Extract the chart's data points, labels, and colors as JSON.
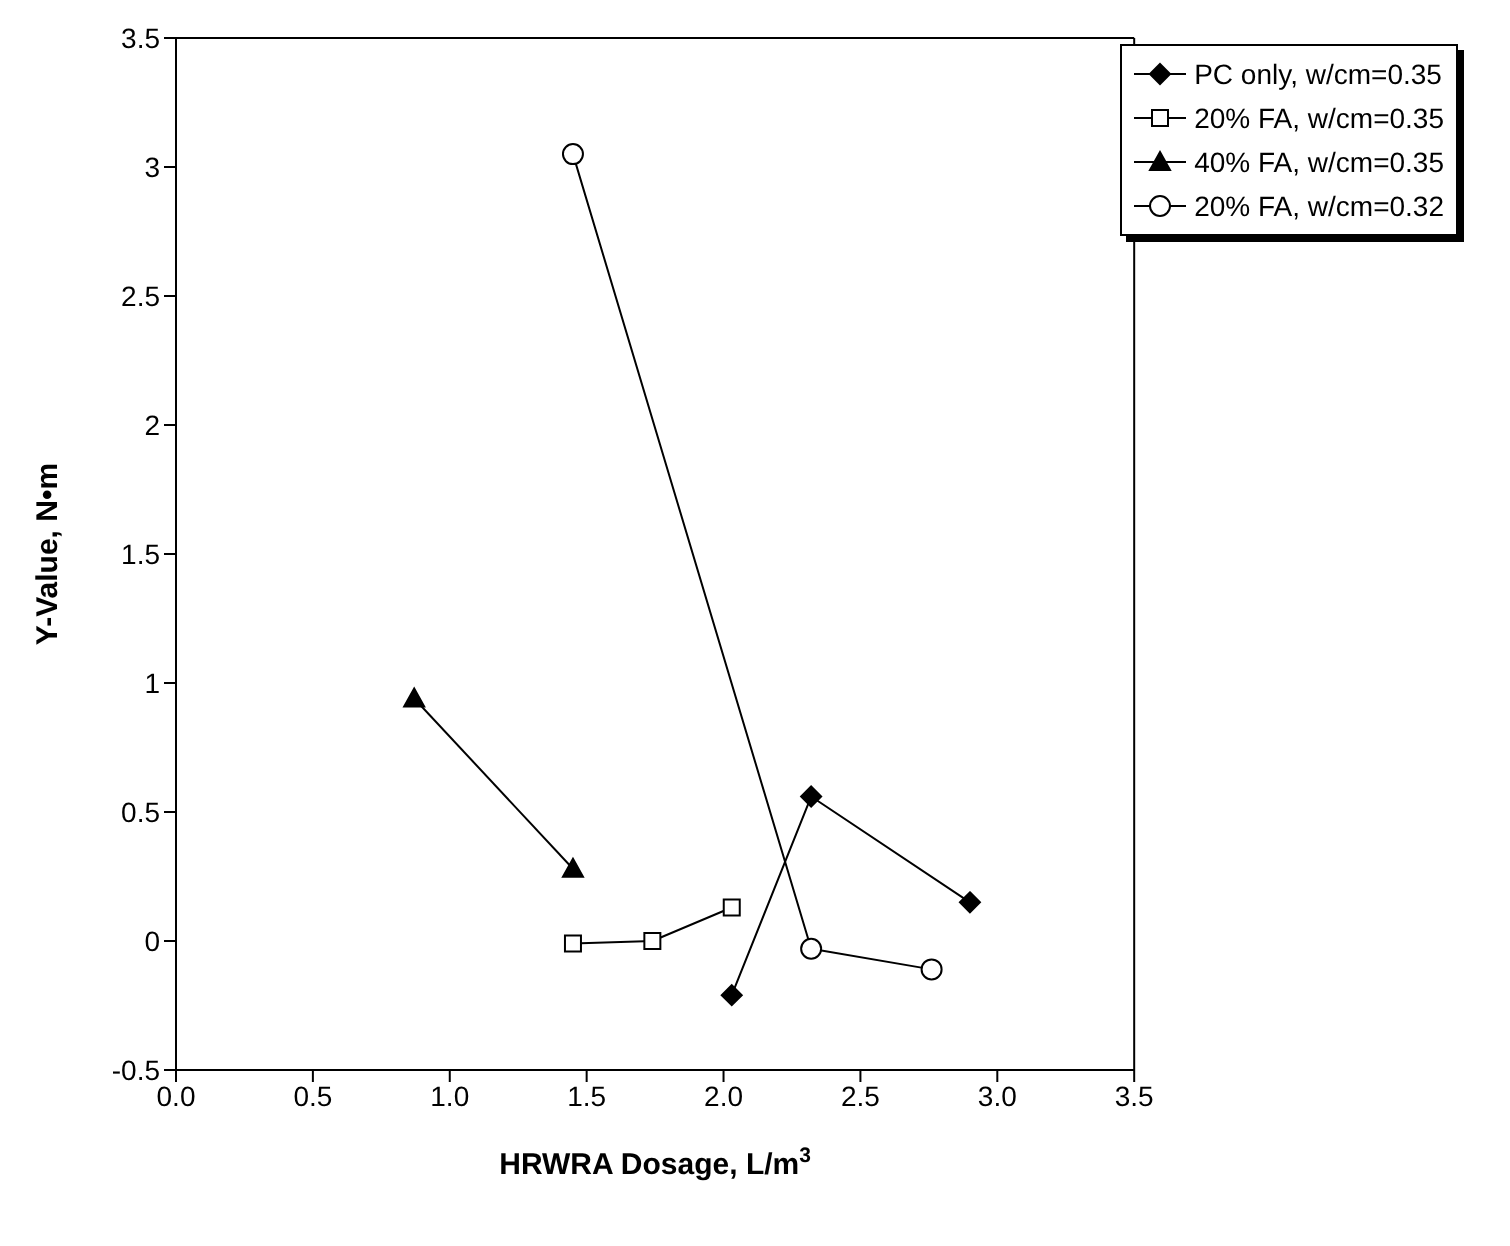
{
  "chart_data": {
    "type": "line",
    "xlabel": "HRWRA Dosage, L/m$^{3}$",
    "ylabel": "Y-Value, N•m",
    "xlim": [
      0,
      3.5
    ],
    "xticks": [
      {
        "value": 0,
        "label": "0.0"
      },
      {
        "value": 0.5,
        "label": "0.5"
      },
      {
        "value": 1,
        "label": "1.0"
      },
      {
        "value": 1.5,
        "label": "1.5"
      },
      {
        "value": 2,
        "label": "2.0"
      },
      {
        "value": 2.5,
        "label": "2.5"
      },
      {
        "value": 3,
        "label": "3.0"
      },
      {
        "value": 3.5,
        "label": "3.5"
      }
    ],
    "ylim": [
      -0.5,
      3.5
    ],
    "yticks": [
      -0.5,
      0,
      0.5,
      1,
      1.5,
      2,
      2.5,
      3,
      3.5
    ],
    "grid": false,
    "legend": "top right",
    "line_style": "solid",
    "series": [
      {
        "name": "PC only, w/cm=0.35",
        "color": "#000000",
        "marker": "diamond",
        "x": [
          2.03,
          2.32,
          2.9
        ],
        "values": [
          -0.21,
          0.56,
          0.15
        ]
      },
      {
        "name": "20% FA, w/cm=0.35",
        "color": "#000000",
        "marker": "square",
        "x": [
          1.45,
          1.74,
          2.03
        ],
        "values": [
          -0.01,
          0.0,
          0.13
        ]
      },
      {
        "name": "40% FA, w/cm=0.35",
        "color": "#000000",
        "marker": "triangle",
        "x": [
          0.87,
          1.45
        ],
        "values": [
          0.94,
          0.28
        ]
      },
      {
        "name": "20% FA, w/cm=0.32",
        "color": "#000000",
        "marker": "circle",
        "x": [
          1.45,
          2.32,
          2.76
        ],
        "values": [
          3.05,
          -0.03,
          -0.11
        ]
      }
    ]
  }
}
